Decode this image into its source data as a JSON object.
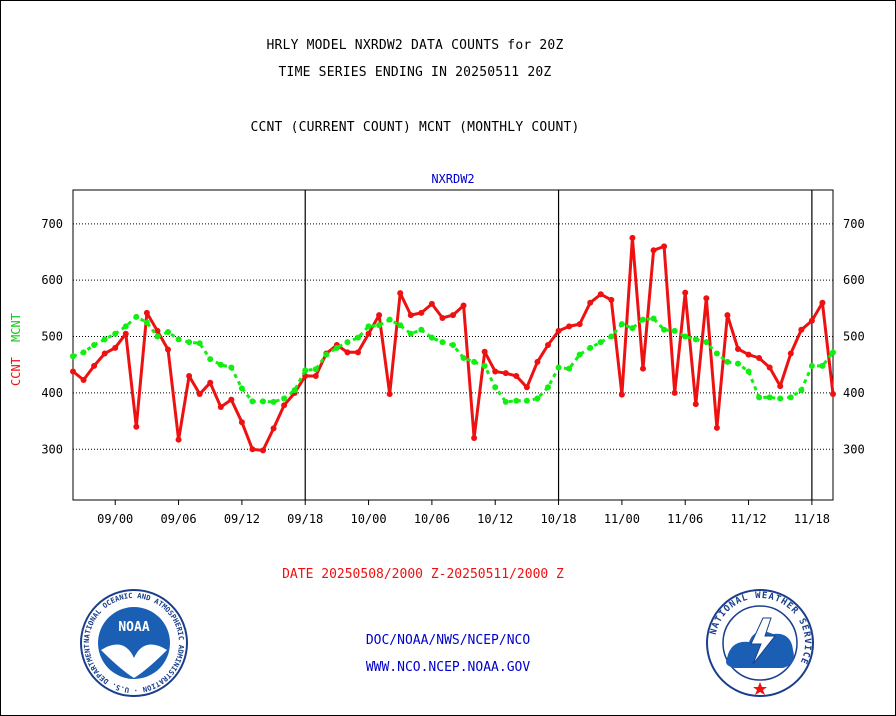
{
  "header": {
    "title1": "HRLY MODEL NXRDW2 DATA COUNTS for 20Z",
    "title2": "TIME SERIES ENDING IN 20250511 20Z",
    "subtitle": "CCNT (CURRENT COUNT) MCNT (MONTHLY COUNT)"
  },
  "footer": {
    "line1": "DOC/NOAA/NWS/NCEP/NCO",
    "line2": "WWW.NCO.NCEP.NOAA.GOV"
  },
  "logos": {
    "noaa_text": "NOAA",
    "noaa_ring": "NATIONAL OCEANIC AND ATMOSPHERIC ADMINISTRATION · U.S. DEPARTMENT OF COMMERCE ·",
    "nws_ring": "NATIONAL WEATHER SERVICE"
  },
  "colors": {
    "ccnt": "#ee1111",
    "mcnt": "#11ee11",
    "axis_title": "#0000cc",
    "date_label": "#ee1111"
  },
  "chart_data": {
    "type": "line",
    "title": "NXRDW2",
    "xlabel": "DATE 20250508/2000 Z-20250511/2000 Z",
    "ylabel_left": [
      "CCNT",
      "MCNT"
    ],
    "ylim": [
      210,
      760
    ],
    "yticks": [
      300,
      400,
      500,
      600,
      700
    ],
    "grid": true,
    "xlim": [
      0,
      72
    ],
    "xtick_labels": [
      "09/00",
      "09/06",
      "09/12",
      "09/18",
      "10/00",
      "10/06",
      "10/12",
      "10/18",
      "11/00",
      "11/06",
      "11/12",
      "11/18"
    ],
    "xtick_positions": [
      4,
      10,
      16,
      22,
      28,
      34,
      40,
      46,
      52,
      58,
      64,
      70
    ],
    "day_boundaries": [
      22,
      46,
      70
    ],
    "series": [
      {
        "name": "CCNT",
        "x": [
          0,
          1,
          2,
          3,
          4,
          5,
          6,
          7,
          8,
          9,
          10,
          11,
          12,
          13,
          14,
          15,
          16,
          17,
          18,
          19,
          20,
          21,
          22,
          23,
          24,
          25,
          26,
          27,
          28,
          29,
          30,
          31,
          32,
          33,
          34,
          35,
          36,
          37,
          38,
          39,
          40,
          41,
          42,
          43,
          44,
          45,
          46,
          47,
          48,
          49,
          50,
          51,
          52,
          53,
          54,
          55,
          56,
          57,
          58,
          59,
          60,
          61,
          62,
          63,
          64,
          65,
          66,
          67,
          68,
          69,
          70,
          71,
          72
        ],
        "values": [
          438,
          423,
          448,
          470,
          480,
          505,
          340,
          542,
          510,
          477,
          317,
          430,
          398,
          418,
          375,
          388,
          348,
          300,
          298,
          337,
          378,
          400,
          430,
          430,
          470,
          485,
          472,
          472,
          505,
          538,
          398,
          577,
          538,
          542,
          558,
          533,
          538,
          555,
          320,
          473,
          438,
          435,
          430,
          410,
          455,
          485,
          510,
          518,
          522,
          560,
          575,
          565,
          397,
          675,
          443,
          653,
          660,
          400,
          578,
          380,
          568,
          338,
          538,
          478,
          468,
          462,
          445,
          412,
          470,
          512,
          528,
          560,
          398
        ]
      },
      {
        "name": "MCNT",
        "x": [
          0,
          1,
          2,
          3,
          4,
          5,
          6,
          7,
          8,
          9,
          10,
          11,
          12,
          13,
          14,
          15,
          16,
          17,
          18,
          19,
          20,
          21,
          22,
          23,
          24,
          25,
          26,
          27,
          28,
          29,
          30,
          31,
          32,
          33,
          34,
          35,
          36,
          37,
          38,
          39,
          40,
          41,
          42,
          43,
          44,
          45,
          46,
          47,
          48,
          49,
          50,
          51,
          52,
          53,
          54,
          55,
          56,
          57,
          58,
          59,
          60,
          61,
          62,
          63,
          64,
          65,
          66,
          67,
          68,
          69,
          70,
          71,
          72
        ],
        "values": [
          465,
          472,
          485,
          495,
          505,
          518,
          535,
          525,
          500,
          508,
          495,
          490,
          488,
          460,
          450,
          445,
          408,
          385,
          385,
          384,
          390,
          405,
          440,
          442,
          468,
          480,
          490,
          498,
          518,
          520,
          530,
          520,
          505,
          512,
          498,
          490,
          485,
          462,
          455,
          448,
          410,
          384,
          386,
          386,
          390,
          410,
          445,
          443,
          468,
          480,
          490,
          500,
          522,
          515,
          530,
          532,
          512,
          510,
          500,
          495,
          490,
          470,
          455,
          452,
          438,
          392,
          392,
          390,
          392,
          405,
          448,
          448,
          472
        ]
      }
    ]
  }
}
